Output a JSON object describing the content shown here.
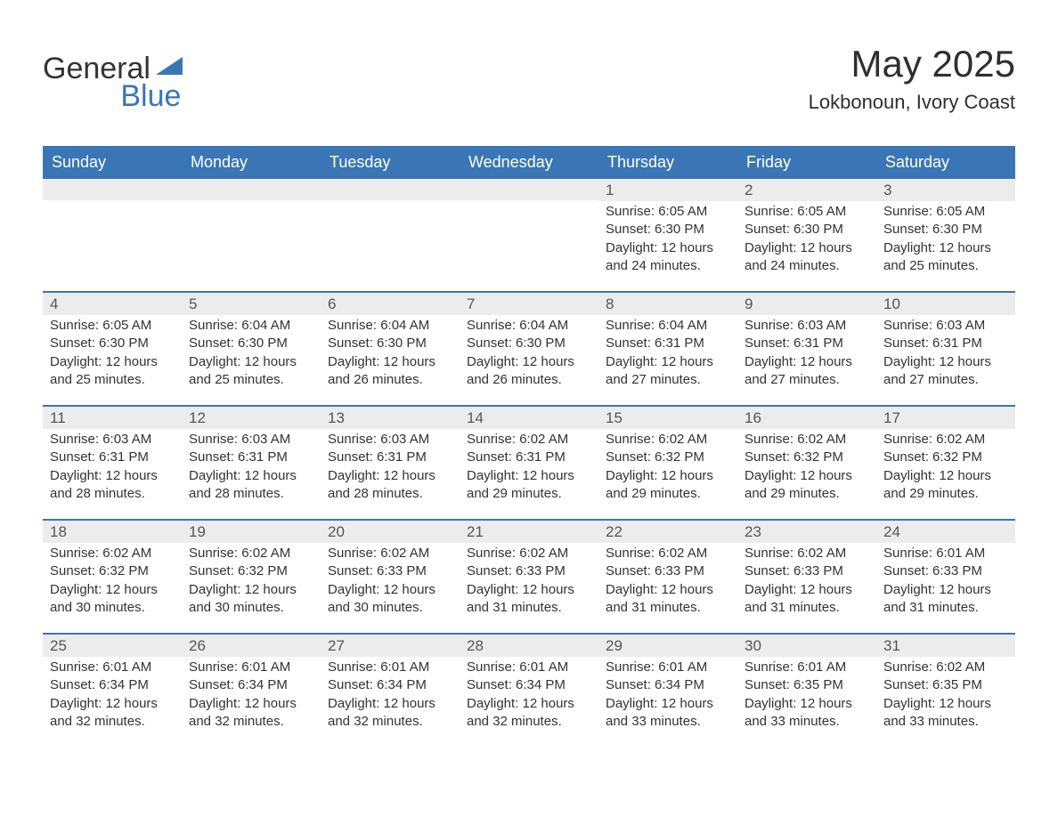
{
  "logo": {
    "text1": "General",
    "text2": "Blue",
    "text1_color": "#333333",
    "text2_color": "#3a76b5",
    "shape_color": "#3a76b5"
  },
  "title": {
    "month": "May 2025",
    "location": "Lokbonoun, Ivory Coast"
  },
  "colors": {
    "header_bg": "#3a76b5",
    "header_text": "#ffffff",
    "row_border": "#3a76b5",
    "daynum_bg": "#ececec",
    "body_bg": "#ffffff",
    "text": "#333333",
    "daynum_text": "#555555"
  },
  "fonts": {
    "month_title_pt": 42,
    "location_pt": 22,
    "dow_pt": 18,
    "daynum_pt": 17,
    "body_pt": 15
  },
  "days_of_week": [
    "Sunday",
    "Monday",
    "Tuesday",
    "Wednesday",
    "Thursday",
    "Friday",
    "Saturday"
  ],
  "weeks": [
    [
      {
        "day": "",
        "sunrise": "",
        "sunset": "",
        "daylight_l1": "",
        "daylight_l2": ""
      },
      {
        "day": "",
        "sunrise": "",
        "sunset": "",
        "daylight_l1": "",
        "daylight_l2": ""
      },
      {
        "day": "",
        "sunrise": "",
        "sunset": "",
        "daylight_l1": "",
        "daylight_l2": ""
      },
      {
        "day": "",
        "sunrise": "",
        "sunset": "",
        "daylight_l1": "",
        "daylight_l2": ""
      },
      {
        "day": "1",
        "sunrise": "Sunrise: 6:05 AM",
        "sunset": "Sunset: 6:30 PM",
        "daylight_l1": "Daylight: 12 hours",
        "daylight_l2": "and 24 minutes."
      },
      {
        "day": "2",
        "sunrise": "Sunrise: 6:05 AM",
        "sunset": "Sunset: 6:30 PM",
        "daylight_l1": "Daylight: 12 hours",
        "daylight_l2": "and 24 minutes."
      },
      {
        "day": "3",
        "sunrise": "Sunrise: 6:05 AM",
        "sunset": "Sunset: 6:30 PM",
        "daylight_l1": "Daylight: 12 hours",
        "daylight_l2": "and 25 minutes."
      }
    ],
    [
      {
        "day": "4",
        "sunrise": "Sunrise: 6:05 AM",
        "sunset": "Sunset: 6:30 PM",
        "daylight_l1": "Daylight: 12 hours",
        "daylight_l2": "and 25 minutes."
      },
      {
        "day": "5",
        "sunrise": "Sunrise: 6:04 AM",
        "sunset": "Sunset: 6:30 PM",
        "daylight_l1": "Daylight: 12 hours",
        "daylight_l2": "and 25 minutes."
      },
      {
        "day": "6",
        "sunrise": "Sunrise: 6:04 AM",
        "sunset": "Sunset: 6:30 PM",
        "daylight_l1": "Daylight: 12 hours",
        "daylight_l2": "and 26 minutes."
      },
      {
        "day": "7",
        "sunrise": "Sunrise: 6:04 AM",
        "sunset": "Sunset: 6:30 PM",
        "daylight_l1": "Daylight: 12 hours",
        "daylight_l2": "and 26 minutes."
      },
      {
        "day": "8",
        "sunrise": "Sunrise: 6:04 AM",
        "sunset": "Sunset: 6:31 PM",
        "daylight_l1": "Daylight: 12 hours",
        "daylight_l2": "and 27 minutes."
      },
      {
        "day": "9",
        "sunrise": "Sunrise: 6:03 AM",
        "sunset": "Sunset: 6:31 PM",
        "daylight_l1": "Daylight: 12 hours",
        "daylight_l2": "and 27 minutes."
      },
      {
        "day": "10",
        "sunrise": "Sunrise: 6:03 AM",
        "sunset": "Sunset: 6:31 PM",
        "daylight_l1": "Daylight: 12 hours",
        "daylight_l2": "and 27 minutes."
      }
    ],
    [
      {
        "day": "11",
        "sunrise": "Sunrise: 6:03 AM",
        "sunset": "Sunset: 6:31 PM",
        "daylight_l1": "Daylight: 12 hours",
        "daylight_l2": "and 28 minutes."
      },
      {
        "day": "12",
        "sunrise": "Sunrise: 6:03 AM",
        "sunset": "Sunset: 6:31 PM",
        "daylight_l1": "Daylight: 12 hours",
        "daylight_l2": "and 28 minutes."
      },
      {
        "day": "13",
        "sunrise": "Sunrise: 6:03 AM",
        "sunset": "Sunset: 6:31 PM",
        "daylight_l1": "Daylight: 12 hours",
        "daylight_l2": "and 28 minutes."
      },
      {
        "day": "14",
        "sunrise": "Sunrise: 6:02 AM",
        "sunset": "Sunset: 6:31 PM",
        "daylight_l1": "Daylight: 12 hours",
        "daylight_l2": "and 29 minutes."
      },
      {
        "day": "15",
        "sunrise": "Sunrise: 6:02 AM",
        "sunset": "Sunset: 6:32 PM",
        "daylight_l1": "Daylight: 12 hours",
        "daylight_l2": "and 29 minutes."
      },
      {
        "day": "16",
        "sunrise": "Sunrise: 6:02 AM",
        "sunset": "Sunset: 6:32 PM",
        "daylight_l1": "Daylight: 12 hours",
        "daylight_l2": "and 29 minutes."
      },
      {
        "day": "17",
        "sunrise": "Sunrise: 6:02 AM",
        "sunset": "Sunset: 6:32 PM",
        "daylight_l1": "Daylight: 12 hours",
        "daylight_l2": "and 29 minutes."
      }
    ],
    [
      {
        "day": "18",
        "sunrise": "Sunrise: 6:02 AM",
        "sunset": "Sunset: 6:32 PM",
        "daylight_l1": "Daylight: 12 hours",
        "daylight_l2": "and 30 minutes."
      },
      {
        "day": "19",
        "sunrise": "Sunrise: 6:02 AM",
        "sunset": "Sunset: 6:32 PM",
        "daylight_l1": "Daylight: 12 hours",
        "daylight_l2": "and 30 minutes."
      },
      {
        "day": "20",
        "sunrise": "Sunrise: 6:02 AM",
        "sunset": "Sunset: 6:33 PM",
        "daylight_l1": "Daylight: 12 hours",
        "daylight_l2": "and 30 minutes."
      },
      {
        "day": "21",
        "sunrise": "Sunrise: 6:02 AM",
        "sunset": "Sunset: 6:33 PM",
        "daylight_l1": "Daylight: 12 hours",
        "daylight_l2": "and 31 minutes."
      },
      {
        "day": "22",
        "sunrise": "Sunrise: 6:02 AM",
        "sunset": "Sunset: 6:33 PM",
        "daylight_l1": "Daylight: 12 hours",
        "daylight_l2": "and 31 minutes."
      },
      {
        "day": "23",
        "sunrise": "Sunrise: 6:02 AM",
        "sunset": "Sunset: 6:33 PM",
        "daylight_l1": "Daylight: 12 hours",
        "daylight_l2": "and 31 minutes."
      },
      {
        "day": "24",
        "sunrise": "Sunrise: 6:01 AM",
        "sunset": "Sunset: 6:33 PM",
        "daylight_l1": "Daylight: 12 hours",
        "daylight_l2": "and 31 minutes."
      }
    ],
    [
      {
        "day": "25",
        "sunrise": "Sunrise: 6:01 AM",
        "sunset": "Sunset: 6:34 PM",
        "daylight_l1": "Daylight: 12 hours",
        "daylight_l2": "and 32 minutes."
      },
      {
        "day": "26",
        "sunrise": "Sunrise: 6:01 AM",
        "sunset": "Sunset: 6:34 PM",
        "daylight_l1": "Daylight: 12 hours",
        "daylight_l2": "and 32 minutes."
      },
      {
        "day": "27",
        "sunrise": "Sunrise: 6:01 AM",
        "sunset": "Sunset: 6:34 PM",
        "daylight_l1": "Daylight: 12 hours",
        "daylight_l2": "and 32 minutes."
      },
      {
        "day": "28",
        "sunrise": "Sunrise: 6:01 AM",
        "sunset": "Sunset: 6:34 PM",
        "daylight_l1": "Daylight: 12 hours",
        "daylight_l2": "and 32 minutes."
      },
      {
        "day": "29",
        "sunrise": "Sunrise: 6:01 AM",
        "sunset": "Sunset: 6:34 PM",
        "daylight_l1": "Daylight: 12 hours",
        "daylight_l2": "and 33 minutes."
      },
      {
        "day": "30",
        "sunrise": "Sunrise: 6:01 AM",
        "sunset": "Sunset: 6:35 PM",
        "daylight_l1": "Daylight: 12 hours",
        "daylight_l2": "and 33 minutes."
      },
      {
        "day": "31",
        "sunrise": "Sunrise: 6:02 AM",
        "sunset": "Sunset: 6:35 PM",
        "daylight_l1": "Daylight: 12 hours",
        "daylight_l2": "and 33 minutes."
      }
    ]
  ]
}
